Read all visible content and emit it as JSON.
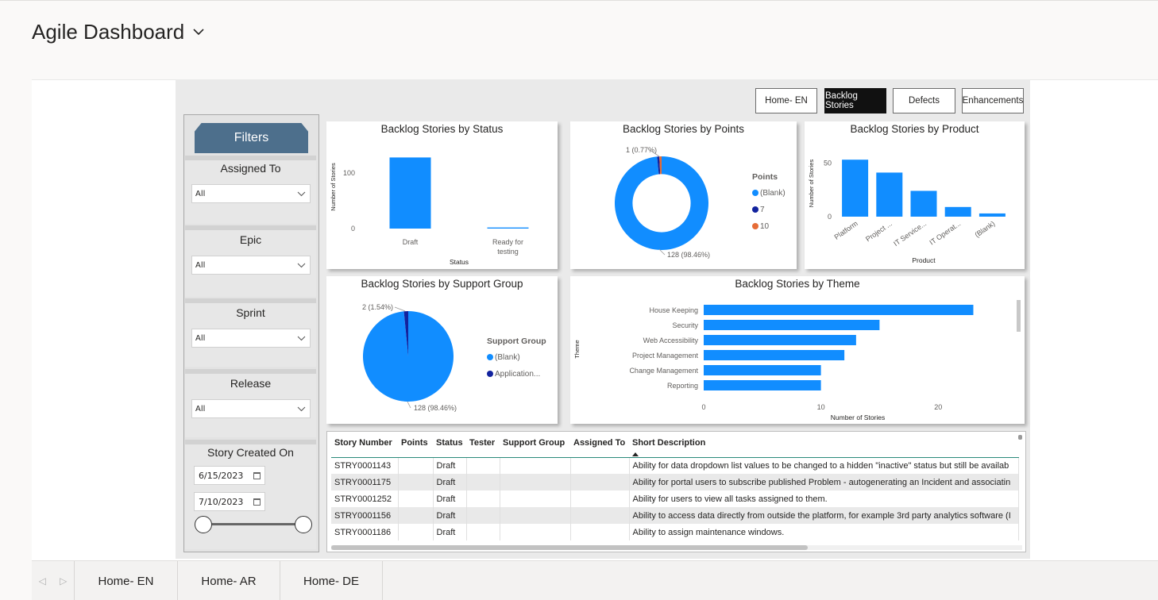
{
  "header": {
    "title": "Agile Dashboard"
  },
  "nav_buttons": [
    {
      "label": "Home- EN",
      "active": false
    },
    {
      "label": "Backlog Stories",
      "active": true
    },
    {
      "label": "Defects",
      "active": false
    },
    {
      "label": "Enhancements",
      "active": false
    }
  ],
  "filters": {
    "title": "Filters",
    "slicers": [
      {
        "label": "Assigned To",
        "value": "All"
      },
      {
        "label": "Epic",
        "value": "All"
      },
      {
        "label": "Sprint",
        "value": "All"
      },
      {
        "label": "Release",
        "value": "All"
      }
    ],
    "date_slicer": {
      "label": "Story Created On",
      "start": "6/15/2023",
      "end": "7/10/2023"
    }
  },
  "chart_data": [
    {
      "type": "bar",
      "title": "Backlog Stories by Status",
      "xlabel": "Status",
      "ylabel": "Number of Stories",
      "categories": [
        "Draft",
        "Ready for testing"
      ],
      "category_lines": [
        [
          "Draft"
        ],
        [
          "Ready for",
          "testing"
        ]
      ],
      "values": [
        128,
        2
      ],
      "yticks": [
        0,
        100
      ],
      "ylim": [
        0,
        150
      ]
    },
    {
      "type": "pie",
      "title": "Backlog Stories by Points",
      "donut": true,
      "legend_title": "Points",
      "series": [
        {
          "name": "(Blank)",
          "value": 128,
          "label": "128 (98.46%)",
          "color": "#118dff"
        },
        {
          "name": "7",
          "value": 1,
          "label": "1 (0.77%)",
          "color": "#12239e"
        },
        {
          "name": "10",
          "value": 1,
          "label": "",
          "color": "#e66c37"
        }
      ]
    },
    {
      "type": "bar",
      "title": "Backlog Stories by Product",
      "xlabel": "Product",
      "ylabel": "Number of Stories",
      "categories": [
        "Platform",
        "Project ...",
        "IT Service...",
        "IT Operat...",
        "(Blank)"
      ],
      "values": [
        53,
        41,
        24,
        9,
        3
      ],
      "yticks": [
        0,
        50
      ],
      "ylim": [
        0,
        62
      ]
    },
    {
      "type": "pie",
      "title": "Backlog Stories by Support Group",
      "donut": false,
      "legend_title": "Support Group",
      "series": [
        {
          "name": "(Blank)",
          "value": 128,
          "label": "128 (98.46%)",
          "color": "#118dff"
        },
        {
          "name": "Application...",
          "value": 2,
          "label": "2 (1.54%)",
          "color": "#12239e"
        }
      ]
    },
    {
      "type": "bar",
      "orientation": "horizontal",
      "title": "Backlog Stories by Theme",
      "xlabel": "Number of Stories",
      "ylabel": "Theme",
      "categories": [
        "House Keeping",
        "Security",
        "Web Accessibility",
        "Project Management",
        "Change Management",
        "Reporting"
      ],
      "values": [
        23,
        15,
        13,
        12,
        10,
        10
      ],
      "xticks": [
        0,
        10,
        20
      ],
      "xlim": [
        0,
        25
      ]
    }
  ],
  "table": {
    "columns": [
      "Story Number",
      "Points",
      "Status",
      "Tester",
      "Support Group",
      "Assigned To",
      "Short Description"
    ],
    "rows": [
      [
        "STRY0001143",
        "",
        "Draft",
        "",
        "",
        "",
        "Ability for data dropdown list values to be changed to a hidden \"inactive\" status but still be availab"
      ],
      [
        "STRY0001175",
        "",
        "Draft",
        "",
        "",
        "",
        "Ability for portal users to subscribe published Problem - autogenerating an Incident and associatin"
      ],
      [
        "STRY0001252",
        "",
        "Draft",
        "",
        "",
        "",
        "Ability for users to view all tasks assigned to them."
      ],
      [
        "STRY0001156",
        "",
        "Draft",
        "",
        "",
        "",
        "Ability to access data directly from outside the platform, for example 3rd party analytics software (I"
      ],
      [
        "STRY0001186",
        "",
        "Draft",
        "",
        "",
        "",
        "Ability to assign maintenance windows."
      ]
    ]
  },
  "page_tabs": [
    "Home- EN",
    "Home- AR",
    "Home- DE"
  ],
  "colors": {
    "bar": "#118dff",
    "accent_dark": "#12239e",
    "orange": "#e66c37",
    "filter_header": "#4d6f8c"
  }
}
